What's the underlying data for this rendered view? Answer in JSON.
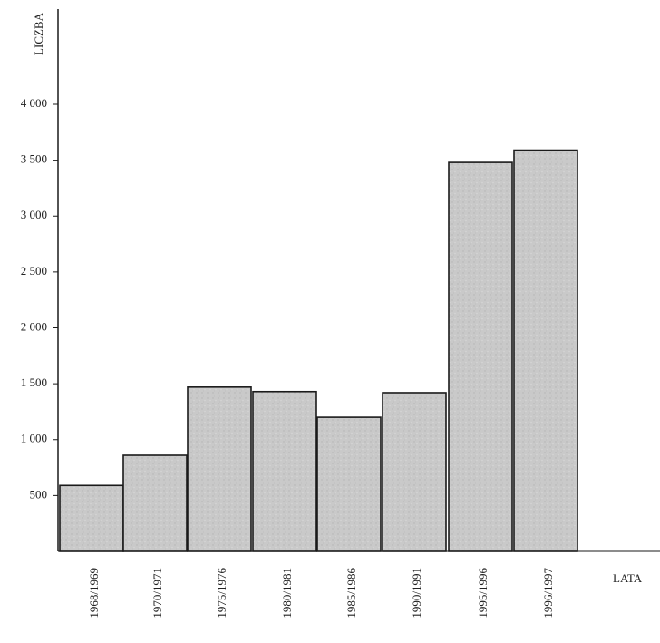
{
  "chart_data": {
    "type": "bar",
    "title": "",
    "xlabel": "LATA",
    "ylabel": "LICZBA",
    "categories": [
      "1968/1969",
      "1970/1971",
      "1975/1976",
      "1980/1981",
      "1985/1986",
      "1990/1991",
      "1995/1996",
      "1996/1997"
    ],
    "values": [
      590,
      860,
      1470,
      1430,
      1200,
      1420,
      3480,
      3590
    ],
    "ylim": [
      0,
      4800
    ],
    "yticks": [
      500,
      1000,
      1500,
      2000,
      2500,
      3000,
      3500,
      4000
    ],
    "ytick_labels": [
      "500",
      "1 000",
      "1 500",
      "2 000",
      "2 500",
      "3 000",
      "3 500",
      "4 000"
    ],
    "grid": false,
    "colors": {
      "bar_fill": "#c8c8c8",
      "bar_stroke": "#1a1a1a",
      "axis": "#1a1a1a"
    }
  }
}
